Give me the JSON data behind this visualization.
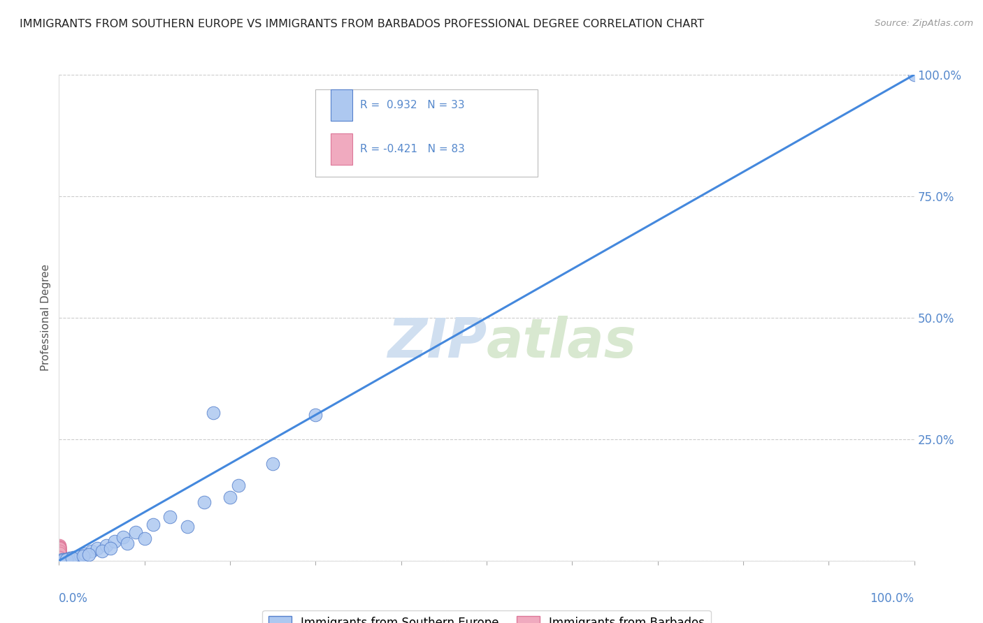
{
  "title": "IMMIGRANTS FROM SOUTHERN EUROPE VS IMMIGRANTS FROM BARBADOS PROFESSIONAL DEGREE CORRELATION CHART",
  "source": "Source: ZipAtlas.com",
  "ylabel": "Professional Degree",
  "ytick_values": [
    0,
    25,
    50,
    75,
    100
  ],
  "ytick_labels": [
    "",
    "25.0%",
    "50.0%",
    "75.0%",
    "100.0%"
  ],
  "xlim": [
    0,
    100
  ],
  "ylim": [
    0,
    100
  ],
  "blue_color": "#adc8f0",
  "pink_color": "#f0aabf",
  "blue_edge": "#5580cc",
  "pink_edge": "#dd7799",
  "line_color": "#4488dd",
  "watermark_color": "#d0dff0",
  "title_color": "#222222",
  "axis_color": "#5588cc",
  "grid_color": "#cccccc",
  "legend_blue_label": "Immigrants from Southern Europe",
  "legend_pink_label": "Immigrants from Barbados",
  "blue_scatter_x": [
    0.4,
    0.7,
    1.0,
    1.3,
    1.7,
    2.1,
    2.5,
    3.0,
    3.8,
    4.5,
    5.5,
    6.5,
    7.5,
    9.0,
    11.0,
    13.0,
    17.0,
    21.0,
    100.0,
    0.5,
    0.9,
    1.5,
    2.8,
    3.5,
    5.0,
    6.0,
    8.0,
    10.0,
    15.0,
    20.0,
    25.0,
    30.0,
    18.0
  ],
  "blue_scatter_y": [
    0.2,
    0.3,
    0.4,
    0.5,
    0.7,
    0.9,
    1.1,
    1.4,
    2.0,
    2.5,
    3.2,
    4.0,
    4.8,
    5.8,
    7.5,
    9.0,
    12.0,
    15.5,
    100.0,
    0.1,
    0.3,
    0.6,
    1.0,
    1.3,
    2.0,
    2.5,
    3.5,
    4.5,
    7.0,
    13.0,
    20.0,
    30.0,
    30.5
  ],
  "pink_scatter_x": [
    0.05,
    0.08,
    0.05,
    0.07,
    0.06,
    0.09,
    0.05,
    0.07,
    0.08,
    0.06,
    0.05,
    0.08,
    0.06,
    0.07,
    0.05,
    0.09,
    0.06,
    0.08,
    0.05,
    0.07,
    0.06,
    0.08,
    0.05,
    0.07,
    0.06,
    0.09,
    0.05,
    0.07,
    0.08,
    0.06,
    0.05,
    0.08,
    0.06,
    0.07,
    0.05,
    0.09,
    0.06,
    0.08,
    0.05,
    0.07,
    0.06,
    0.08,
    0.05,
    0.07,
    0.06,
    0.09,
    0.05,
    0.07,
    0.08,
    0.06,
    0.05,
    0.08,
    0.06,
    0.07,
    0.05,
    0.09,
    0.06,
    0.08,
    0.05,
    0.07,
    0.06,
    0.08,
    0.05,
    0.07,
    0.06,
    0.09,
    0.05,
    0.07,
    0.08,
    0.06,
    0.05,
    0.08,
    0.06,
    0.07,
    0.05,
    0.09,
    0.06,
    0.08,
    0.05,
    0.07,
    0.06,
    0.08,
    0.05
  ],
  "pink_scatter_y": [
    0.4,
    1.0,
    2.0,
    0.7,
    1.4,
    0.3,
    2.5,
    1.0,
    0.5,
    1.8,
    3.0,
    0.4,
    1.6,
    2.2,
    0.8,
    1.2,
    0.6,
    1.9,
    1.5,
    0.4,
    0.7,
    2.1,
    0.9,
    3.2,
    0.5,
    1.7,
    0.3,
    2.4,
    1.3,
    0.8,
    0.4,
    2.9,
    1.1,
    0.6,
    2.0,
    0.3,
    1.5,
    0.7,
    2.7,
    1.0,
    0.3,
    2.3,
    1.6,
    0.5,
    2.8,
    0.8,
    1.3,
    2.0,
    0.4,
    1.7,
    2.5,
    0.3,
    1.2,
    0.6,
    2.3,
    0.9,
    0.5,
    1.8,
    0.3,
    2.4,
    1.4,
    0.7,
    2.1,
    0.4,
    1.6,
    2.7,
    0.5,
    1.1,
    1.9,
    0.4,
    1.7,
    0.6,
    2.2,
    1.0,
    0.5,
    2.6,
    0.8,
    1.3,
    0.3,
    2.0,
    0.5,
    1.5,
    0.7
  ],
  "line_x": [
    0,
    100
  ],
  "line_y": [
    0,
    100
  ]
}
